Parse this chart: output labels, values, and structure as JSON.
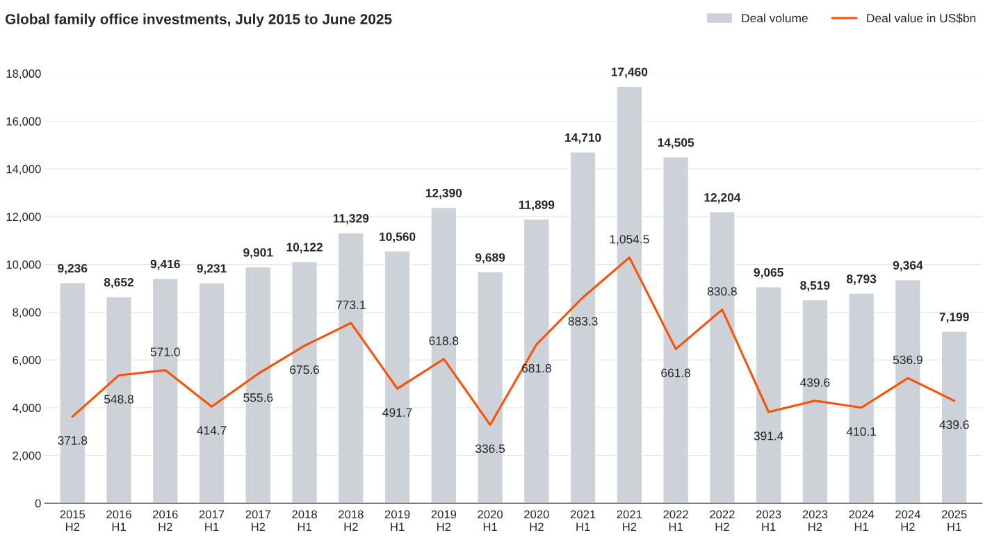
{
  "chart_data": {
    "type": "bar",
    "title": "Global family office investments, July 2015 to June 2025",
    "categories": [
      "2015\nH2",
      "2016\nH1",
      "2016\nH2",
      "2017\nH1",
      "2017\nH2",
      "2018\nH1",
      "2018\nH2",
      "2019\nH1",
      "2019\nH2",
      "2020\nH1",
      "2020\nH2",
      "2021\nH1",
      "2021\nH2",
      "2022\nH1",
      "2022\nH2",
      "2023\nH1",
      "2023\nH2",
      "2024\nH1",
      "2024\nH2",
      "2025\nH1"
    ],
    "series": [
      {
        "name": "Deal volume",
        "color": "#cdd1d8",
        "values": [
          9236,
          8652,
          9416,
          9231,
          9901,
          10122,
          11329,
          10560,
          12390,
          9689,
          11899,
          14710,
          17460,
          14505,
          12204,
          9065,
          8519,
          8793,
          9364,
          7199
        ],
        "value_labels": [
          "9,236",
          "8,652",
          "9,416",
          "9,231",
          "9,901",
          "10,122",
          "11,329",
          "10,560",
          "12,390",
          "9,689",
          "11,899",
          "14,710",
          "17,460",
          "14,505",
          "12,204",
          "9,065",
          "8,519",
          "8,793",
          "9,364",
          "7,199"
        ]
      },
      {
        "name": "Deal value in US$bn",
        "type": "line",
        "axis": "y2",
        "color": "#fe5000",
        "values": [
          371.8,
          548.8,
          571.0,
          414.7,
          555.6,
          675.6,
          773.1,
          491.7,
          618.8,
          336.5,
          681.8,
          883.3,
          1054.5,
          661.8,
          830.8,
          391.4,
          439.6,
          410.1,
          536.9,
          439.6
        ],
        "value_labels": [
          "371.8",
          "548.8",
          "571.0",
          "414.7",
          "555.6",
          "675.6",
          "773.1",
          "491.7",
          "618.8",
          "336.5",
          "681.8",
          "883.3",
          "1,054.5",
          "661.8",
          "830.8",
          "391.4",
          "439.6",
          "410.1",
          "536.9",
          "439.6"
        ]
      }
    ],
    "ylim": [
      0,
      18000
    ],
    "yticks": [
      {
        "value": 0,
        "label": "0"
      },
      {
        "value": 2000,
        "label": "2,000"
      },
      {
        "value": 4000,
        "label": "4,000"
      },
      {
        "value": 6000,
        "label": "6,000"
      },
      {
        "value": 8000,
        "label": "8,000"
      },
      {
        "value": 10000,
        "label": "10,000"
      },
      {
        "value": 12000,
        "label": "12,000"
      },
      {
        "value": 14000,
        "label": "14,000"
      },
      {
        "value": 16000,
        "label": "16,000"
      },
      {
        "value": 18000,
        "label": "18,000"
      }
    ],
    "grid": "y",
    "legend": "top right",
    "marker": "none",
    "line_style": "solid"
  }
}
